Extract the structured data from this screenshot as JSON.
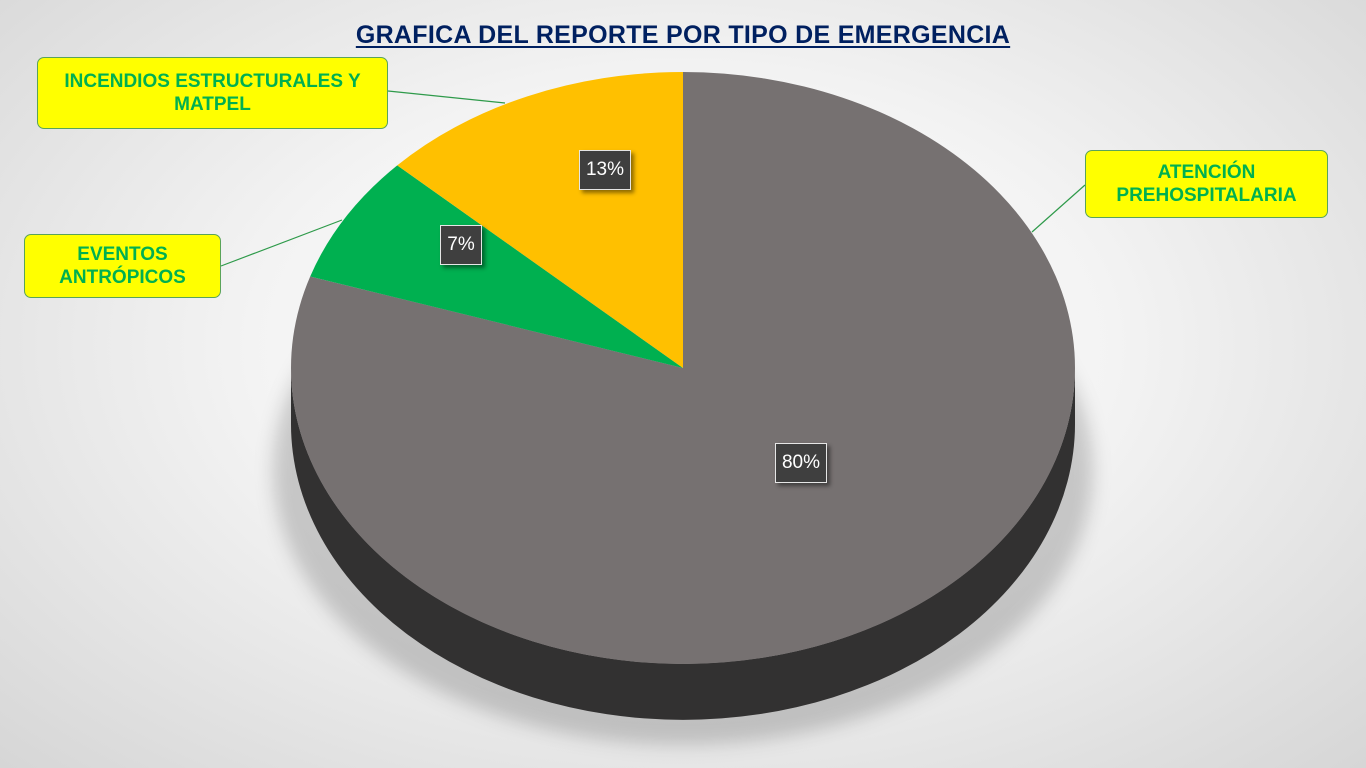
{
  "chart_data": {
    "type": "pie",
    "title": "GRAFICA DEL REPORTE POR TIPO DE EMERGENCIA",
    "categories": [
      "ATENCIÓN PREHOSPITALARIA",
      "EVENTOS ANTRÓPICOS",
      "INCENDIOS ESTRUCTURALES Y MATPEL"
    ],
    "values": [
      80,
      7,
      13
    ],
    "value_labels": [
      "80%",
      "7%",
      "13%"
    ],
    "colors": [
      "#767171",
      "#00b050",
      "#ffc000"
    ],
    "side_colors": [
      "#3a3838",
      "#007a36",
      "#b38600"
    ],
    "legend": "none",
    "callout_style": {
      "fill": "#ffff00",
      "text_color": "#00b050",
      "border_color": "#5aa35a"
    }
  }
}
